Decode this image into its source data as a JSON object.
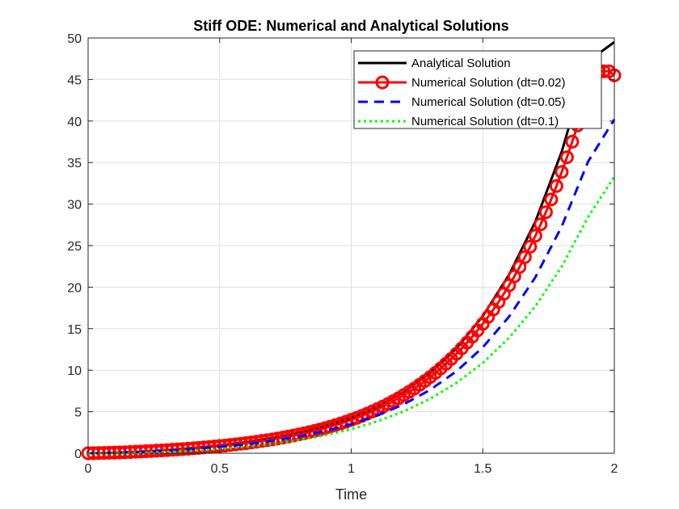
{
  "chart_data": {
    "type": "line",
    "title": "Stiff ODE: Numerical and Analytical Solutions",
    "xlabel": "Time",
    "ylabel": "",
    "xlim": [
      0,
      2
    ],
    "ylim": [
      0,
      50
    ],
    "xticks": [
      0,
      0.5,
      1,
      1.5,
      2
    ],
    "xtick_labels": [
      "0",
      "0.5",
      "1",
      "1.5",
      "2"
    ],
    "yticks": [
      0,
      5,
      10,
      15,
      20,
      25,
      30,
      35,
      40,
      45,
      50
    ],
    "ytick_labels": [
      "0",
      "5",
      "10",
      "15",
      "20",
      "25",
      "30",
      "35",
      "40",
      "45",
      "50"
    ],
    "grid": true,
    "legend_position": "top-right",
    "series": [
      {
        "name": "Analytical Solution",
        "color": "#000000",
        "style": "solid",
        "marker": "none",
        "x": [
          0,
          0.1,
          0.2,
          0.3,
          0.4,
          0.5,
          0.6,
          0.7,
          0.8,
          0.9,
          1.0,
          1.1,
          1.2,
          1.3,
          1.4,
          1.5,
          1.6,
          1.7,
          1.8,
          1.9,
          2.0
        ],
        "y": [
          0,
          0.05,
          0.2,
          0.39,
          0.64,
          0.95,
          1.33,
          1.82,
          2.44,
          3.25,
          4.28,
          5.63,
          7.37,
          9.66,
          12.63,
          16.5,
          21.5,
          27.9,
          36.3,
          47.2,
          49.5
        ]
      },
      {
        "name": "Numerical Solution (dt=0.02)",
        "color": "#ff0000",
        "style": "solid",
        "marker": "circle",
        "x": [
          0,
          0.02,
          0.04,
          0.06,
          0.08,
          0.1,
          0.12,
          0.14,
          0.16,
          0.18,
          0.2,
          0.22,
          0.24,
          0.26,
          0.28,
          0.3,
          0.32,
          0.34,
          0.36,
          0.38,
          0.4,
          0.42,
          0.44,
          0.46,
          0.48,
          0.5,
          0.52,
          0.54,
          0.56,
          0.58,
          0.6,
          0.62,
          0.64,
          0.66,
          0.68,
          0.7,
          0.72,
          0.74,
          0.76,
          0.78,
          0.8,
          0.82,
          0.84,
          0.86,
          0.88,
          0.9,
          0.92,
          0.94,
          0.96,
          0.98,
          1.0,
          1.02,
          1.04,
          1.06,
          1.08,
          1.1,
          1.12,
          1.14,
          1.16,
          1.18,
          1.2,
          1.22,
          1.24,
          1.26,
          1.28,
          1.3,
          1.32,
          1.34,
          1.36,
          1.38,
          1.4,
          1.42,
          1.44,
          1.46,
          1.48,
          1.5,
          1.52,
          1.54,
          1.56,
          1.58,
          1.6,
          1.62,
          1.64,
          1.66,
          1.68,
          1.7,
          1.72,
          1.74,
          1.76,
          1.78,
          1.8,
          1.82,
          1.84,
          1.86,
          1.88,
          1.9,
          1.92,
          1.94,
          1.96,
          1.98,
          2.0
        ],
        "y": [
          0,
          0.01,
          0.02,
          0.04,
          0.06,
          0.08,
          0.1,
          0.12,
          0.15,
          0.18,
          0.21,
          0.24,
          0.27,
          0.31,
          0.34,
          0.38,
          0.42,
          0.46,
          0.5,
          0.55,
          0.6,
          0.65,
          0.7,
          0.75,
          0.81,
          0.87,
          0.93,
          1.0,
          1.07,
          1.14,
          1.22,
          1.3,
          1.39,
          1.48,
          1.57,
          1.67,
          1.78,
          1.89,
          2.01,
          2.13,
          2.26,
          2.4,
          2.54,
          2.69,
          2.85,
          3.02,
          3.2,
          3.39,
          3.59,
          3.8,
          4.02,
          4.25,
          4.5,
          4.76,
          5.03,
          5.32,
          5.62,
          5.94,
          6.28,
          6.63,
          7.0,
          7.39,
          7.8,
          8.24,
          8.69,
          9.17,
          9.68,
          10.21,
          10.77,
          11.36,
          11.98,
          12.63,
          13.31,
          14.03,
          14.79,
          15.58,
          16.42,
          17.3,
          18.22,
          19.2,
          20.22,
          21.3,
          22.43,
          23.62,
          24.87,
          26.19,
          27.57,
          29.03,
          30.56,
          32.17,
          33.86,
          35.64,
          37.51,
          39.47,
          41.54,
          43.71,
          45.99,
          45.99,
          45.99,
          45.99,
          45.5
        ]
      },
      {
        "name": "Numerical Solution (dt=0.05)",
        "color": "#0000ff",
        "style": "dashed",
        "marker": "none",
        "x": [
          0,
          0.1,
          0.2,
          0.3,
          0.4,
          0.5,
          0.6,
          0.7,
          0.8,
          0.9,
          1.0,
          1.1,
          1.2,
          1.3,
          1.4,
          1.5,
          1.6,
          1.7,
          1.8,
          1.9,
          2.0
        ],
        "y": [
          0,
          0.05,
          0.15,
          0.3,
          0.5,
          0.76,
          1.08,
          1.5,
          2.02,
          2.67,
          3.5,
          4.55,
          5.9,
          7.64,
          9.87,
          12.75,
          16.45,
          21.2,
          27.3,
          35.1,
          40.2
        ]
      },
      {
        "name": "Numerical Solution (dt=0.1)",
        "color": "#00ff00",
        "style": "dotted",
        "marker": "none",
        "x": [
          0,
          0.1,
          0.2,
          0.3,
          0.4,
          0.5,
          0.6,
          0.7,
          0.8,
          0.9,
          1.0,
          1.1,
          1.2,
          1.3,
          1.4,
          1.5,
          1.6,
          1.7,
          1.8,
          1.9,
          2.0
        ],
        "y": [
          0,
          0.0,
          0.05,
          0.15,
          0.3,
          0.5,
          0.77,
          1.12,
          1.58,
          2.16,
          2.9,
          3.85,
          5.05,
          6.56,
          8.47,
          10.87,
          13.9,
          17.7,
          22.47,
          28.43,
          33.3
        ]
      }
    ]
  }
}
